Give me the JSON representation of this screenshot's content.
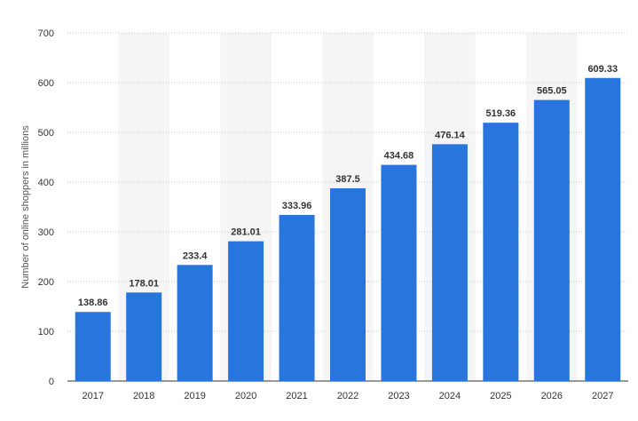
{
  "chart_data": {
    "type": "bar",
    "title": "",
    "xlabel": "",
    "ylabel": "Number of online shoppers in millions",
    "categories": [
      "2017",
      "2018",
      "2019",
      "2020",
      "2021",
      "2022",
      "2023",
      "2024",
      "2025",
      "2026",
      "2027"
    ],
    "values": [
      138.86,
      178.01,
      233.4,
      281.01,
      333.96,
      387.5,
      434.68,
      476.14,
      519.36,
      565.05,
      609.33
    ],
    "value_labels": [
      "138.86",
      "178.01",
      "233.4",
      "281.01",
      "333.96",
      "387.5",
      "434.68",
      "476.14",
      "519.36",
      "565.05",
      "609.33"
    ],
    "ylim": [
      0,
      700
    ],
    "yticks": [
      "0",
      "100",
      "200",
      "300",
      "400",
      "500",
      "600",
      "700"
    ],
    "ytick_values": [
      0,
      100,
      200,
      300,
      400,
      500,
      600,
      700
    ],
    "grid": true,
    "grid_style": "dotted",
    "alternating_column_bands": true,
    "legend": "none",
    "colors": {
      "bar": "#2876dd",
      "band": "#f5f5f5",
      "grid": "#c8c8c8",
      "axis": "#333333"
    }
  }
}
